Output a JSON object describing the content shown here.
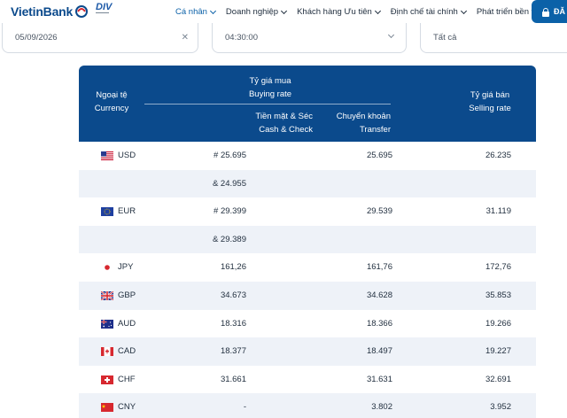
{
  "header": {
    "logo_text": "VietinBank",
    "div_text": "DIV",
    "nav": [
      {
        "label": "Cá nhân",
        "active": true
      },
      {
        "label": "Doanh nghiệp",
        "active": false
      },
      {
        "label": "Khách hàng Ưu tiên",
        "active": false
      },
      {
        "label": "Định chế tài chính",
        "active": false
      },
      {
        "label": "Phát triển bền vững",
        "active": false
      }
    ],
    "login_label": "ĐĂ"
  },
  "filters": {
    "date": "05/09/2026",
    "time": "04:30:00",
    "type": "Tất cả"
  },
  "table": {
    "headers": {
      "currency_vi": "Ngoại tệ",
      "currency_en": "Currency",
      "buying_vi": "Tỷ giá mua",
      "buying_en": "Buying rate",
      "cash_vi": "Tiền mặt & Séc",
      "cash_en": "Cash & Check",
      "transfer_vi": "Chuyển khoản",
      "transfer_en": "Transfer",
      "selling_vi": "Tỷ giá bán",
      "selling_en": "Selling rate"
    },
    "rows": [
      {
        "code": "USD",
        "flag": "us-flag",
        "cash": "# 25.695",
        "transfer": "25.695",
        "sell": "26.235"
      },
      {
        "code": "",
        "flag": "",
        "cash": "& 24.955",
        "transfer": "",
        "sell": ""
      },
      {
        "code": "EUR",
        "flag": "eu-flag",
        "cash": "# 29.399",
        "transfer": "29.539",
        "sell": "31.119"
      },
      {
        "code": "",
        "flag": "",
        "cash": "& 29.389",
        "transfer": "",
        "sell": ""
      },
      {
        "code": "JPY",
        "flag": "jp-flag",
        "cash": "161,26",
        "transfer": "161,76",
        "sell": "172,76"
      },
      {
        "code": "GBP",
        "flag": "gb-flag",
        "cash": "34.673",
        "transfer": "34.628",
        "sell": "35.853"
      },
      {
        "code": "AUD",
        "flag": "au-flag",
        "cash": "18.316",
        "transfer": "18.366",
        "sell": "19.266"
      },
      {
        "code": "CAD",
        "flag": "ca-flag",
        "cash": "18.377",
        "transfer": "18.497",
        "sell": "19.227"
      },
      {
        "code": "CHF",
        "flag": "ch-flag",
        "cash": "31.661",
        "transfer": "31.631",
        "sell": "32.691"
      },
      {
        "code": "CNY",
        "flag": "cn-flag",
        "cash": "-",
        "transfer": "3.802",
        "sell": "3.952"
      }
    ]
  },
  "colors": {
    "brand": "#0b4a8c",
    "accent": "#0b61a8",
    "row_alt": "#eef2f8"
  }
}
